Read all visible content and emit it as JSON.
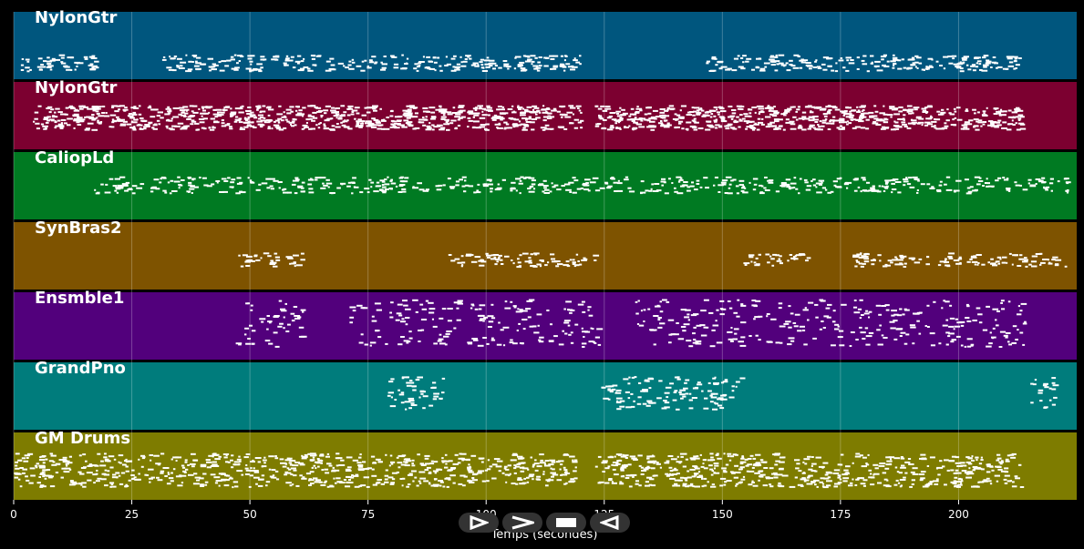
{
  "axis": {
    "title": "Temps (secondes)",
    "min": 0,
    "max": 225,
    "ticks": [
      0,
      25,
      50,
      75,
      100,
      125,
      150,
      175,
      200
    ]
  },
  "tracks": [
    {
      "name": "NylonGtr",
      "color": "#00567e",
      "segments": [
        [
          1.5,
          18
        ],
        [
          31,
          48
        ],
        [
          49,
          120
        ],
        [
          146.5,
          213
        ]
      ],
      "lane": 0.75,
      "density": 3.2,
      "spread": 0.12
    },
    {
      "name": "NylonGtr",
      "color": "#7c0030",
      "segments": [
        [
          4,
          120
        ],
        [
          123,
          213
        ]
      ],
      "lane": 0.52,
      "density": 7,
      "spread": 0.18
    },
    {
      "name": "CaliopLd",
      "color": "#007a22",
      "segments": [
        [
          17,
          224
        ]
      ],
      "lane": 0.48,
      "density": 2.6,
      "spread": 0.12
    },
    {
      "name": "SynBras2",
      "color": "#7e5300",
      "segments": [
        [
          47,
          61
        ],
        [
          92,
          123
        ],
        [
          154,
          168
        ],
        [
          177,
          224
        ]
      ],
      "lane": 0.55,
      "density": 2.6,
      "spread": 0.1
    },
    {
      "name": "Ensmble1",
      "color": "#52007c",
      "segments": [
        [
          47,
          61
        ],
        [
          71,
          124
        ],
        [
          131,
          214
        ]
      ],
      "lane": 0.45,
      "density": 3.4,
      "spread": 0.35
    },
    {
      "name": "GrandPno",
      "color": "#007c7c",
      "segments": [
        [
          79,
          91
        ],
        [
          124,
          154
        ],
        [
          215,
          220
        ]
      ],
      "lane": 0.45,
      "density": 4,
      "spread": 0.25
    },
    {
      "name": "GM Drums",
      "color": "#7e7c00",
      "segments": [
        [
          0,
          119
        ],
        [
          123,
          213
        ]
      ],
      "lane": 0.55,
      "density": 6,
      "spread": 0.25
    }
  ],
  "controls": [
    {
      "name": "play-button",
      "icon": "play-icon"
    },
    {
      "name": "forward-button",
      "icon": "forward-icon"
    },
    {
      "name": "stop-button",
      "icon": "stop-icon"
    },
    {
      "name": "rewind-button",
      "icon": "rewind-icon"
    }
  ]
}
